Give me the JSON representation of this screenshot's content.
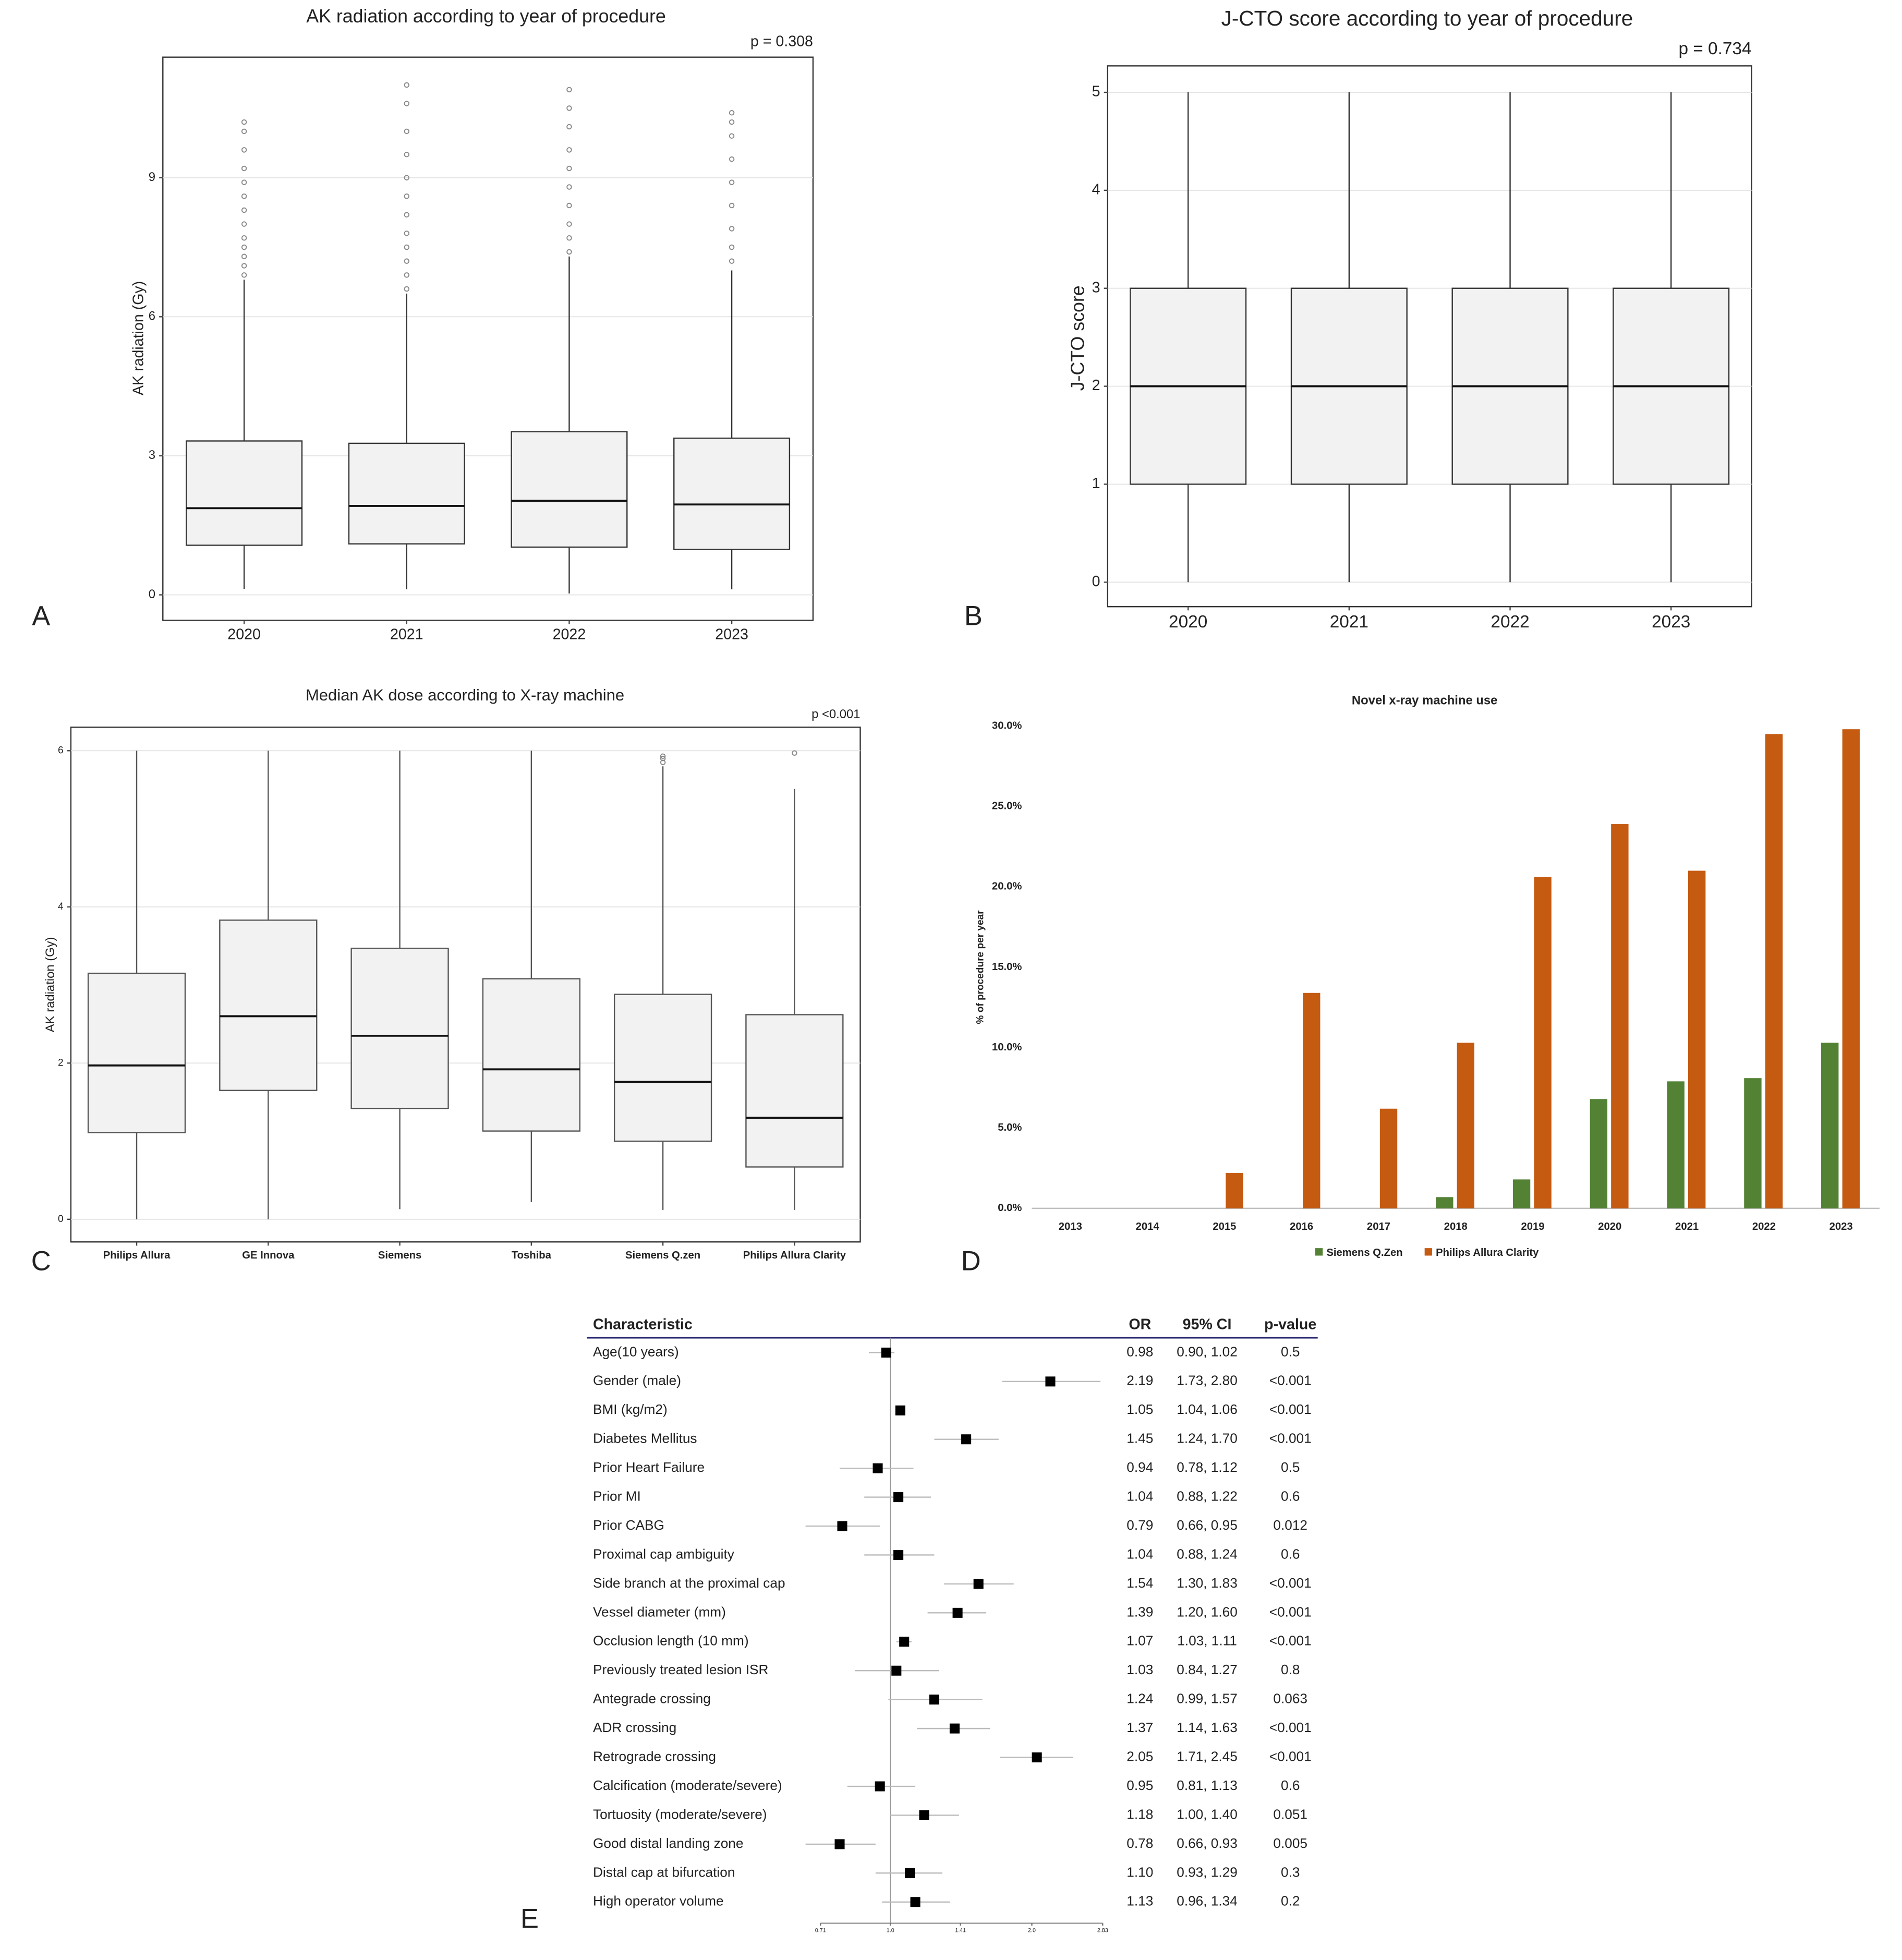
{
  "chart_data": [
    {
      "type": "box",
      "panel": "A",
      "title": "AK radiation according to year of procedure",
      "annotation": "p = 0.308",
      "y_label": "AK radiation (Gy)",
      "categories": [
        "2020",
        "2021",
        "2022",
        "2023"
      ],
      "boxes": {
        "min": [
          0.13,
          0.12,
          0.03,
          0.12
        ],
        "q1": [
          1.07,
          1.1,
          1.03,
          0.98
        ],
        "median": [
          1.87,
          1.92,
          2.03,
          1.95
        ],
        "q3": [
          3.32,
          3.27,
          3.52,
          3.38
        ],
        "max": [
          6.8,
          6.5,
          7.3,
          7.0
        ],
        "outliers": [
          [
            6.9,
            7.1,
            7.3,
            7.5,
            7.7,
            8.0,
            8.3,
            8.6,
            8.9,
            9.2,
            9.6,
            10.0,
            10.2
          ],
          [
            6.6,
            6.9,
            7.2,
            7.5,
            7.8,
            8.2,
            8.6,
            9.0,
            9.5,
            10.0,
            10.6,
            11.0
          ],
          [
            7.4,
            7.7,
            8.0,
            8.4,
            8.8,
            9.2,
            9.6,
            10.1,
            10.5,
            10.9
          ],
          [
            7.2,
            7.5,
            7.9,
            8.4,
            8.9,
            9.4,
            9.9,
            10.2,
            10.4
          ]
        ]
      },
      "ylim": [
        -0.55,
        11.6
      ],
      "yticks": [
        0,
        3,
        6,
        9
      ],
      "grid": true,
      "color": "#f2f2f2"
    },
    {
      "type": "box",
      "panel": "B",
      "title": "J-CTO score according to year of procedure",
      "annotation": "p = 0.734",
      "y_label": "J-CTO score",
      "categories": [
        "2020",
        "2021",
        "2022",
        "2023"
      ],
      "boxes": {
        "min": [
          0,
          0,
          0,
          0
        ],
        "q1": [
          1,
          1,
          1,
          1
        ],
        "median": [
          2,
          2,
          2,
          2
        ],
        "q3": [
          3,
          3,
          3,
          3
        ],
        "max": [
          5,
          5,
          5,
          5
        ],
        "outliers": [
          [],
          [],
          [],
          []
        ]
      },
      "ylim": [
        -0.25,
        5.27
      ],
      "yticks": [
        0,
        1,
        2,
        3,
        4,
        5
      ],
      "grid": true,
      "color": "#f2f2f2"
    },
    {
      "type": "box",
      "panel": "C",
      "title": "Median AK dose according to X-ray machine",
      "annotation": "p <0.001",
      "y_label": "AK radiation (Gy)",
      "categories": [
        "Philips Allura",
        "GE Innova",
        "Siemens",
        "Toshiba",
        "Siemens Q.zen",
        "Philips Allura Clarity"
      ],
      "boxes": {
        "min": [
          0,
          0,
          0.13,
          0.22,
          0.12,
          0.12
        ],
        "q1": [
          1.11,
          1.65,
          1.42,
          1.13,
          1.0,
          0.67
        ],
        "median": [
          1.97,
          2.6,
          2.35,
          1.92,
          1.76,
          1.3
        ],
        "q3": [
          3.15,
          3.83,
          3.47,
          3.08,
          2.88,
          2.62
        ],
        "max": [
          6,
          6,
          6,
          6,
          5.8,
          5.51
        ],
        "outliers": [
          [],
          [],
          [],
          [],
          [
            5.85,
            5.9,
            5.93
          ],
          [
            5.97
          ]
        ]
      },
      "ylim": [
        -0.29,
        6.3
      ],
      "yticks": [
        0,
        2,
        4,
        6
      ],
      "grid": true,
      "color": "#f2f2f2"
    },
    {
      "type": "bar",
      "panel": "D",
      "title": "Novel x-ray machine use",
      "y_label": "% of procedure per year",
      "categories": [
        "2013",
        "2014",
        "2015",
        "2016",
        "2017",
        "2018",
        "2019",
        "2020",
        "2021",
        "2022",
        "2023"
      ],
      "series": [
        {
          "name": "Siemens Q.Zen",
          "color": "#548235",
          "values": [
            0,
            0,
            0,
            0,
            0,
            0.7,
            1.8,
            6.8,
            7.9,
            8.1,
            10.3
          ]
        },
        {
          "name": "Philips Allura Clarity",
          "color": "#c55a11",
          "values": [
            0,
            0,
            2.2,
            13.4,
            6.2,
            10.3,
            20.6,
            23.9,
            21.0,
            29.5,
            29.8
          ]
        }
      ],
      "ylim": [
        0,
        30
      ],
      "yticks": [
        {
          "value": 0,
          "label": "0.0%"
        },
        {
          "value": 5,
          "label": "5.0%"
        },
        {
          "value": 10,
          "label": "10.0%"
        },
        {
          "value": 15,
          "label": "15.0%"
        },
        {
          "value": 20,
          "label": "20.0%"
        },
        {
          "value": 25,
          "label": "25.0%"
        },
        {
          "value": 30,
          "label": "30.0%"
        }
      ],
      "grid": false,
      "legend": "bottom"
    },
    {
      "type": "forest",
      "panel": "E",
      "columns": [
        "Characteristic",
        "OR",
        "95% CI",
        "p-value"
      ],
      "categories": [
        "Age(10 years)",
        "Gender (male)",
        "BMI (kg/m2)",
        "Diabetes Mellitus",
        "Prior Heart Failure",
        "Prior MI",
        "Prior CABG",
        "Proximal cap ambiguity",
        "Side branch at the proximal cap",
        "Vessel diameter (mm)",
        "Occlusion length (10 mm)",
        "Previously treated lesion ISR",
        "Antegrade crossing",
        "ADR crossing",
        "Retrograde crossing",
        "Calcification (moderate/severe)",
        "Tortuosity (moderate/severe)",
        "Good distal landing zone",
        "Distal cap at bifurcation",
        "High operator volume"
      ],
      "values": [
        0.98,
        2.19,
        1.05,
        1.45,
        0.94,
        1.04,
        0.79,
        1.04,
        1.54,
        1.39,
        1.07,
        1.03,
        1.24,
        1.37,
        2.05,
        0.95,
        1.18,
        0.78,
        1.1,
        1.13
      ],
      "value_labels": [
        "0.98",
        "2.19",
        "1.05",
        "1.45",
        "0.94",
        "1.04",
        "0.79",
        "1.04",
        "1.54",
        "1.39",
        "1.07",
        "1.03",
        "1.24",
        "1.37",
        "2.05",
        "0.95",
        "1.18",
        "0.78",
        "1.10",
        "1.13"
      ],
      "ci_low": [
        0.9,
        1.73,
        1.04,
        1.24,
        0.78,
        0.88,
        0.66,
        0.88,
        1.3,
        1.2,
        1.03,
        0.84,
        0.99,
        1.14,
        1.71,
        0.81,
        1.0,
        0.66,
        0.93,
        0.96
      ],
      "ci_high": [
        1.02,
        2.8,
        1.06,
        1.7,
        1.12,
        1.22,
        0.95,
        1.24,
        1.83,
        1.6,
        1.11,
        1.27,
        1.57,
        1.63,
        2.45,
        1.13,
        1.4,
        0.93,
        1.29,
        1.34
      ],
      "ci_labels": [
        "0.90, 1.02",
        "1.73, 2.80",
        "1.04, 1.06",
        "1.24, 1.70",
        "0.78, 1.12",
        "0.88, 1.22",
        "0.66, 0.95",
        "0.88, 1.24",
        "1.30, 1.83",
        "1.20, 1.60",
        "1.03, 1.11",
        "0.84, 1.27",
        "0.99, 1.57",
        "1.14, 1.63",
        "1.71, 2.45",
        "0.81, 1.13",
        "1.00, 1.40",
        "0.66, 0.93",
        "0.93, 1.29",
        "0.96, 1.34"
      ],
      "p_values": [
        "0.5",
        "<0.001",
        "<0.001",
        "<0.001",
        "0.5",
        "0.6",
        "0.012",
        "0.6",
        "<0.001",
        "<0.001",
        "<0.001",
        "0.8",
        "0.063",
        "<0.001",
        "<0.001",
        "0.6",
        "0.051",
        "0.005",
        "0.3",
        "0.2"
      ],
      "xscale": "log",
      "xlim": [
        0.71,
        2.83
      ],
      "xticks": [
        0.71,
        {
          "value": 1,
          "label": "1.0"
        },
        1.41,
        {
          "value": 2,
          "label": "2.0"
        },
        2.83
      ],
      "color": "#000000"
    }
  ]
}
